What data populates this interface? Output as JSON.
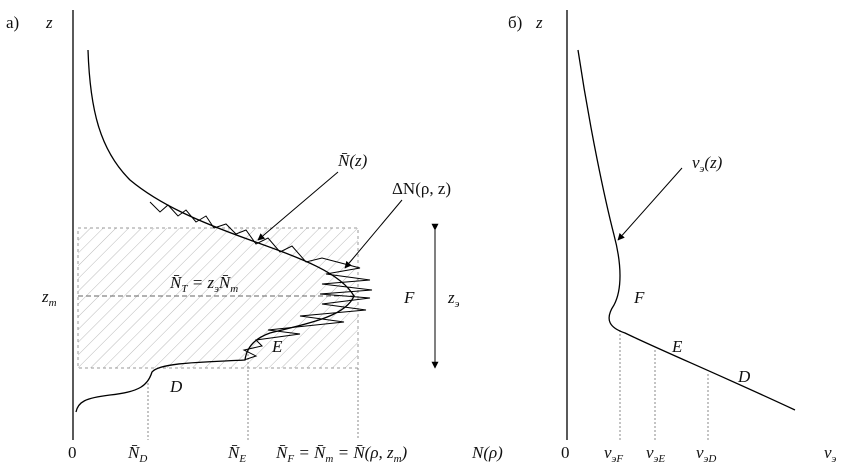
{
  "panel_a": {
    "label": "а)",
    "axis_z": "z",
    "curve_label": {
      "base": "N̄",
      "rest": "(z)"
    },
    "fluct_label": "ΔN(ρ, z)",
    "total_label": {
      "base": "N̄",
      "sub": "T",
      "rest": " = z",
      "sub2": "э",
      "rest2": "N̄",
      "sub3": "m"
    },
    "zm": {
      "base": "z",
      "sub": "m"
    },
    "layer_F": "F",
    "layer_E": "E",
    "layer_D": "D",
    "ze": {
      "base": "z",
      "sub": "э"
    },
    "origin": "0",
    "ND": {
      "base": "N̄",
      "sub": "D"
    },
    "NE": {
      "base": "N̄",
      "sub": "E"
    },
    "NF": {
      "base": "N̄",
      "sub": "F",
      "rest": " = N̄",
      "sub2": "m",
      "rest2": " = N̄(ρ, z",
      "sub3": "m",
      "rest3": ")"
    },
    "axis_x": "N(ρ)"
  },
  "panel_b": {
    "label": "б)",
    "axis_z": "z",
    "curve_label": {
      "base": "ν",
      "sub": "э",
      "rest": "(z)"
    },
    "layer_F": "F",
    "layer_E": "E",
    "layer_D": "D",
    "origin": "0",
    "nuF": {
      "base": "ν",
      "sub": "эF"
    },
    "nuE": {
      "base": "ν",
      "sub": "эE"
    },
    "nuD": {
      "base": "ν",
      "sub": "эD"
    },
    "axis_x": {
      "base": "ν",
      "sub": "э"
    }
  }
}
